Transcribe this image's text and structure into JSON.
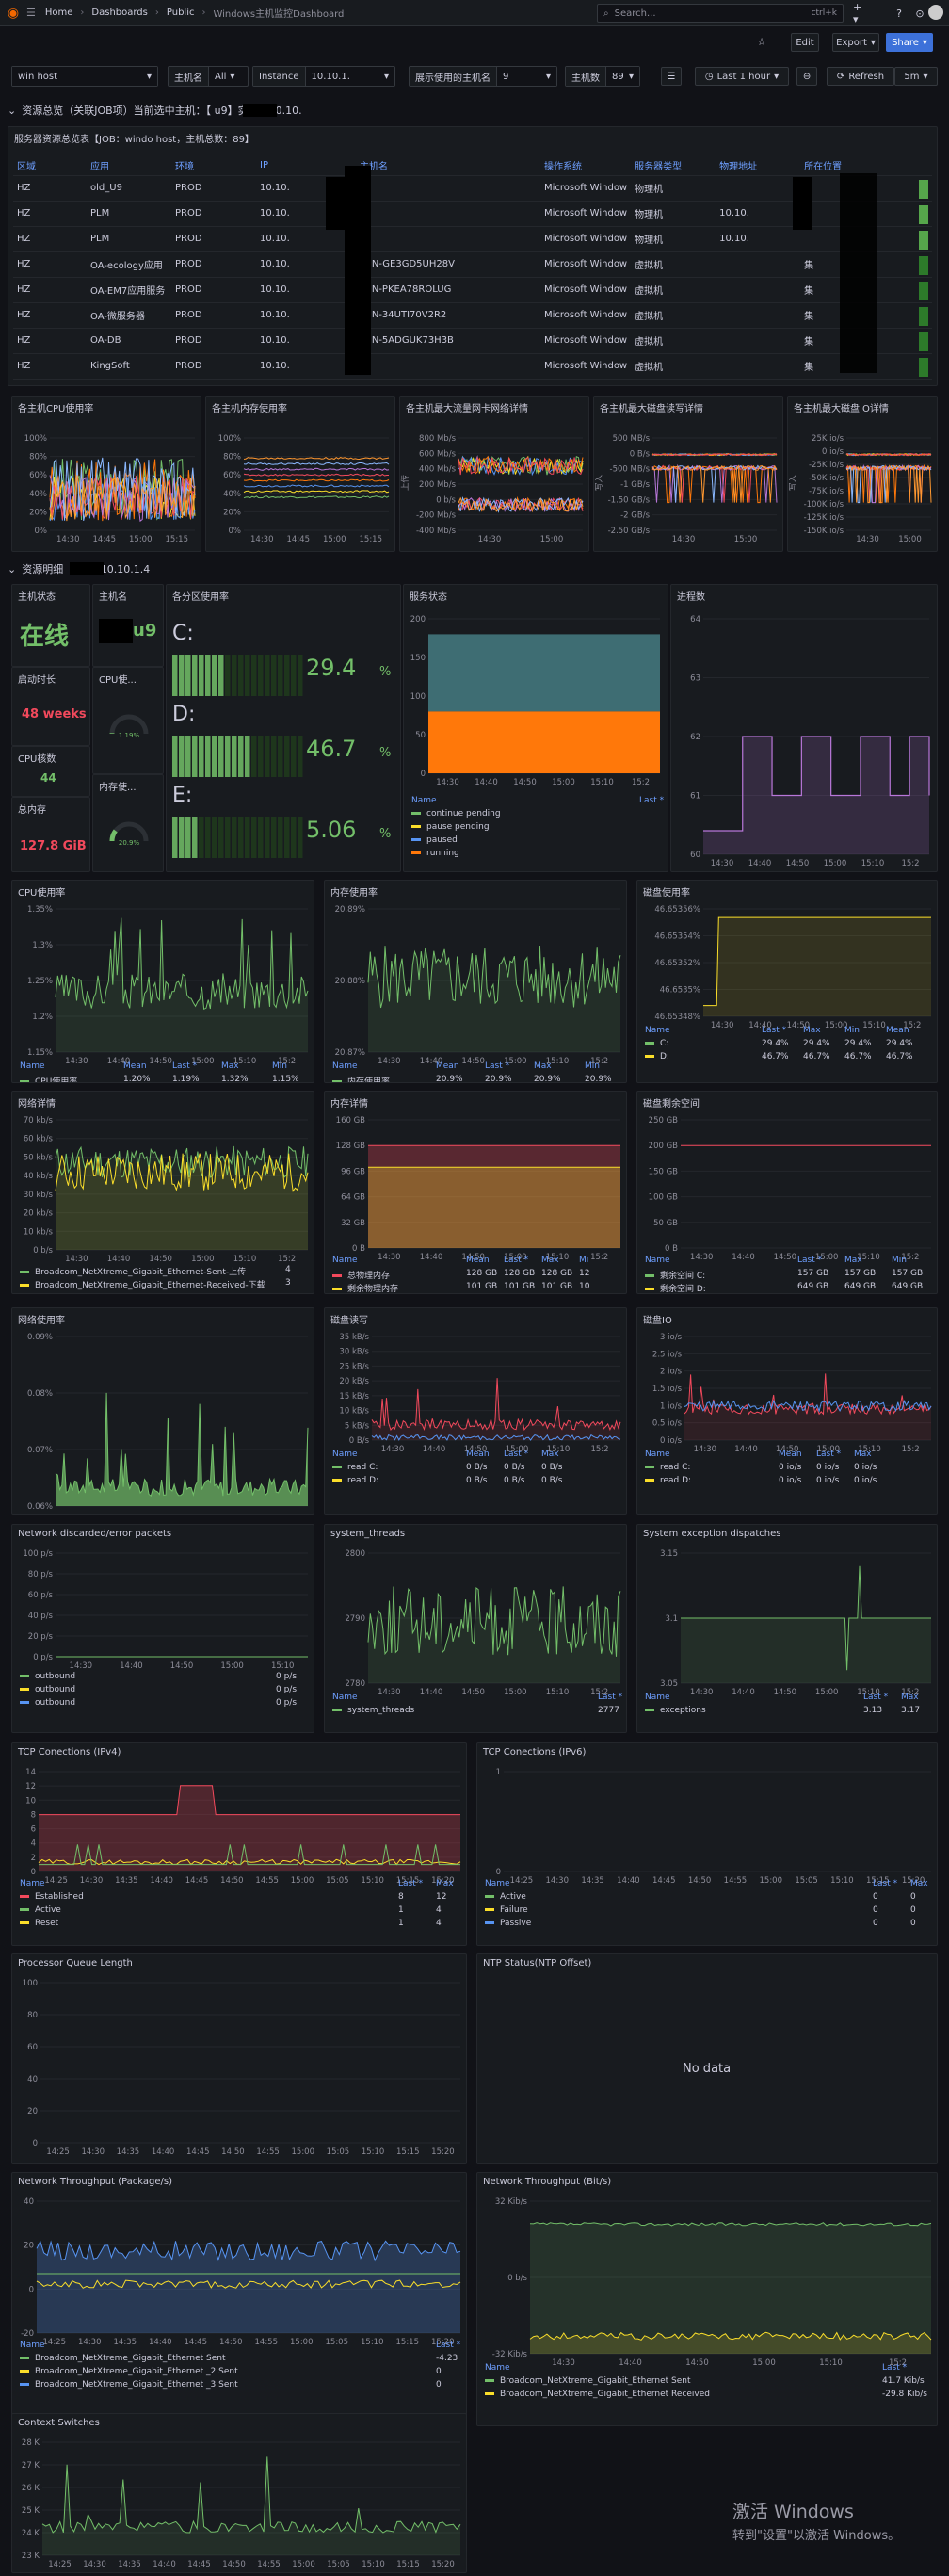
{
  "nav": {
    "home": "Home",
    "dashboards": "Dashboards",
    "public": "Public",
    "title": "Windows主机监控Dashboard",
    "search_placeholder": "Search...",
    "shortcut": "ctrl+k"
  },
  "toolbar": {
    "edit": "Edit",
    "export": "Export",
    "share": "Share",
    "time_range": "Last 1 hour",
    "refresh": "Refresh",
    "refresh_interval": "5m"
  },
  "vars": [
    {
      "label": "",
      "value": "win        host"
    },
    {
      "label": "主机名",
      "value": "All"
    },
    {
      "label": "Instance",
      "value": "10.10.1."
    },
    {
      "label": "展示使用的主机名",
      "value": "  9"
    },
    {
      "label": "主机数",
      "value": "89"
    }
  ],
  "row1": {
    "title": "资源总览（关联JOB项）当前选中主机：【      u9】实例：10.10."
  },
  "table": {
    "title": "服务器资源总览表【JOB：windo            host，主机总数：89】",
    "headers": [
      "区域",
      "应用",
      "环境",
      "IP",
      "主机名",
      "操作系统",
      "服务器类型",
      "物理地址",
      "所在位置"
    ],
    "rows": [
      [
        "HZ",
        "old_U9",
        "PROD",
        "10.10.",
        "",
        "Microsoft Window",
        "物理机",
        "",
        ""
      ],
      [
        "HZ",
        "PLM",
        "PROD",
        "10.10.",
        "",
        "Microsoft Window",
        "物理机",
        "10.10.",
        ""
      ],
      [
        "HZ",
        "PLM",
        "PROD",
        "10.10.",
        "Q",
        "Microsoft Window",
        "物理机",
        "10.10.",
        ""
      ],
      [
        "HZ",
        "OA-ecology应用",
        "PROD",
        "10.10.",
        "WIN-GE3GD5UH28V",
        "Microsoft Window",
        "虚拟机",
        "",
        "集"
      ],
      [
        "HZ",
        "OA-EM7应用服务",
        "PROD",
        "10.10.",
        "WIN-PKEA78ROLUG",
        "Microsoft Window",
        "虚拟机",
        "",
        "集"
      ],
      [
        "HZ",
        "OA-微服务器",
        "PROD",
        "10.10.",
        "WIN-34UTI70V2R2",
        "Microsoft Window",
        "虚拟机",
        "",
        "集"
      ],
      [
        "HZ",
        "OA-DB",
        "PROD",
        "10.10.",
        "WIN-5ADGUK73H3B",
        "Microsoft Window",
        "虚拟机",
        "",
        "集"
      ],
      [
        "HZ",
        "KingSoft",
        "PROD",
        "10.10.",
        "",
        "Microsoft Window",
        "虚拟机",
        "",
        "集"
      ]
    ]
  },
  "overview": [
    {
      "title": "各主机CPU使用率",
      "yticks": [
        "100%",
        "80%",
        "60%",
        "40%",
        "20%",
        "0%"
      ],
      "xticks": [
        "14:30",
        "14:45",
        "15:00",
        "15:15"
      ]
    },
    {
      "title": "各主机内存使用率",
      "yticks": [
        "100%",
        "80%",
        "60%",
        "40%",
        "20%",
        "0%"
      ],
      "xticks": [
        "14:30",
        "14:45",
        "15:00",
        "15:15"
      ]
    },
    {
      "title": "各主机最大流量网卡网络详情",
      "ylabel": "上传",
      "yticks": [
        "800 Mb/s",
        "600 Mb/s",
        "400 Mb/s",
        "200 Mb/s",
        "0 b/s",
        "-200 Mb/s",
        "-400 Mb/s"
      ],
      "xticks": [
        "14:30",
        "15:00"
      ]
    },
    {
      "title": "各主机最大磁盘读写详情",
      "ylabel": "写入",
      "yticks": [
        "500 MB/s",
        "0 B/s",
        "-500 MB/s",
        "-1 GB/s",
        "-1.50 GB/s",
        "-2 GB/s",
        "-2.50 GB/s"
      ],
      "xticks": [
        "14:30",
        "15:00"
      ]
    },
    {
      "title": "各主机最大磁盘IO详情",
      "ylabel": "写入",
      "yticks": [
        "25K io/s",
        "0 io/s",
        "-25K io/s",
        "-50K io/s",
        "-75K io/s",
        "-100K io/s",
        "-125K io/s",
        "-150K io/s"
      ],
      "xticks": [
        "14:30",
        "15:00"
      ]
    }
  ],
  "row2": {
    "title": "资源明细【      39：10.10.1.4"
  },
  "stats": {
    "host_status_title": "主机状态",
    "host_status": "在线",
    "hostname_title": "主机名",
    "hostname": "u9",
    "uptime_title": "启动时长",
    "uptime": "48 weeks",
    "cpu_title": "CPU使...",
    "cpu_gauge": "1.19%",
    "cpu_pct": 1.19,
    "cpus_title": "CPU核数",
    "cpus": "44",
    "mem_title": "内存使...",
    "mem_gauge": "20.9%",
    "mem_pct": 20.9,
    "total_mem_title": "总内存",
    "total_mem": "127.8 GiB"
  },
  "disks": {
    "title": "各分区使用率",
    "items": [
      {
        "label": "C:",
        "value": "29.4",
        "pct": 29.4,
        "unit": "%"
      },
      {
        "label": "D:",
        "value": "46.7",
        "pct": 46.7,
        "unit": "%"
      },
      {
        "label": "E:",
        "value": "5.06",
        "pct": 5.06,
        "unit": "%"
      }
    ]
  },
  "services": {
    "title": "服务状态",
    "yticks": [
      "200",
      "150",
      "100",
      "50",
      "0"
    ],
    "xticks": [
      "14:30",
      "14:40",
      "14:50",
      "15:00",
      "15:10",
      "15:2"
    ],
    "legend_head": [
      "Name",
      "Last *"
    ],
    "legend": [
      {
        "name": "continue pending",
        "last": "0",
        "color": "#73bf69"
      },
      {
        "name": "pause pending",
        "last": "0",
        "color": "#fade2a"
      },
      {
        "name": "paused",
        "last": "0",
        "color": "#5794f2"
      },
      {
        "name": "running",
        "last": "80",
        "color": "#ff780a"
      }
    ]
  },
  "procs": {
    "title": "进程数",
    "yticks": [
      "64",
      "63",
      "62",
      "61",
      "60"
    ],
    "xticks": [
      "14:30",
      "14:40",
      "14:50",
      "15:00",
      "15:10",
      "15:2"
    ]
  },
  "cpu_usage": {
    "title": "CPU使用率",
    "yticks": [
      "1.35%",
      "1.3%",
      "1.25%",
      "1.2%",
      "1.15%"
    ],
    "xticks": [
      "14:30",
      "14:40",
      "14:50",
      "15:00",
      "15:10",
      "15:2"
    ],
    "legend_head": [
      "Name",
      "Mean",
      "Last *",
      "Max",
      "Min"
    ],
    "legend": [
      {
        "name": "CPU使用率",
        "vals": [
          "1.20%",
          "1.19%",
          "1.32%",
          "1.15%"
        ],
        "color": "#73bf69"
      }
    ]
  },
  "mem_usage": {
    "title": "内存使用率",
    "yticks": [
      "20.89%",
      "20.88%",
      "20.87%"
    ],
    "xticks": [
      "14:30",
      "14:40",
      "14:50",
      "15:00",
      "15:10",
      "15:2"
    ],
    "legend_head": [
      "Name",
      "Mean",
      "Last *",
      "Max",
      "Min"
    ],
    "legend": [
      {
        "name": "内存使用率",
        "vals": [
          "20.9%",
          "20.9%",
          "20.9%",
          "20.9%"
        ],
        "color": "#73bf69"
      }
    ]
  },
  "disk_usage": {
    "title": "磁盘使用率",
    "yticks": [
      "46.65356%",
      "46.65354%",
      "46.65352%",
      "46.6535%",
      "46.65348%"
    ],
    "xticks": [
      "14:30",
      "14:40",
      "14:50",
      "15:00",
      "15:10",
      "15:2"
    ],
    "legend_head": [
      "Name",
      "Last *",
      "Max",
      "Min",
      "Mean"
    ],
    "legend": [
      {
        "name": "C:",
        "vals": [
          "29.4%",
          "29.4%",
          "29.4%",
          "29.4%"
        ],
        "color": "#73bf69"
      },
      {
        "name": "D:",
        "vals": [
          "46.7%",
          "46.7%",
          "46.7%",
          "46.7%"
        ],
        "color": "#fade2a"
      }
    ]
  },
  "net_detail": {
    "title": "网络详情",
    "yticks": [
      "70 kb/s",
      "60 kb/s",
      "50 kb/s",
      "40 kb/s",
      "30 kb/s",
      "20 kb/s",
      "10 kb/s",
      "0 b/s"
    ],
    "xticks": [
      "14:30",
      "14:40",
      "14:50",
      "15:00",
      "15:10",
      "15:2"
    ],
    "legend": [
      {
        "name": "Broadcom_NetXtreme_Gigabit_Ethernet-Sent-上传",
        "val": "4",
        "color": "#73bf69"
      },
      {
        "name": "Broadcom_NetXtreme_Gigabit_Ethernet-Received-下载",
        "val": "3",
        "color": "#fade2a"
      }
    ]
  },
  "mem_detail": {
    "title": "内存详情",
    "yticks": [
      "160 GB",
      "128 GB",
      "96 GB",
      "64 GB",
      "32 GB",
      "0 B"
    ],
    "xticks": [
      "14:30",
      "14:40",
      "14:50",
      "15:00",
      "15:10",
      "15:2"
    ],
    "legend_head": [
      "Name",
      "Mean",
      "Last *",
      "Max",
      "Mi"
    ],
    "legend": [
      {
        "name": "总物理内存",
        "vals": [
          "128 GB",
          "128 GB",
          "128 GB",
          "12"
        ],
        "color": "#f2495c"
      },
      {
        "name": "剩余物理内存",
        "vals": [
          "101 GB",
          "101 GB",
          "101 GB",
          "10"
        ],
        "color": "#fade2a"
      }
    ]
  },
  "disk_free": {
    "title": "磁盘剩余空间",
    "yticks": [
      "250 GB",
      "200 GB",
      "150 GB",
      "100 GB",
      "50 GB",
      "0 B"
    ],
    "xticks": [
      "14:30",
      "14:40",
      "14:50",
      "15:00",
      "15:10",
      "15:2"
    ],
    "legend_head": [
      "Name",
      "Last *",
      "Max",
      "Min"
    ],
    "legend": [
      {
        "name": "剩余空间 C:",
        "vals": [
          "157 GB",
          "157 GB",
          "157 GB"
        ],
        "color": "#73bf69"
      },
      {
        "name": "剩余空间 D:",
        "vals": [
          "649 GB",
          "649 GB",
          "649 GB"
        ],
        "color": "#fade2a"
      }
    ]
  },
  "net_usage": {
    "title": "网络使用率",
    "yticks": [
      "0.09%",
      "0.08%",
      "0.07%",
      "0.06%"
    ]
  },
  "disk_rw": {
    "title": "磁盘读写",
    "yticks": [
      "35 kB/s",
      "30 kB/s",
      "25 kB/s",
      "20 kB/s",
      "15 kB/s",
      "10 kB/s",
      "5 kB/s",
      "0 B/s"
    ],
    "xticks": [
      "14:30",
      "14:40",
      "14:50",
      "15:00",
      "15:10",
      "15:2"
    ],
    "legend_head": [
      "Name",
      "Mean",
      "Last *",
      "Max"
    ],
    "legend": [
      {
        "name": "read C:",
        "vals": [
          "0 B/s",
          "0 B/s",
          "0 B/s"
        ],
        "color": "#73bf69"
      },
      {
        "name": "read D:",
        "vals": [
          "0 B/s",
          "0 B/s",
          "0 B/s"
        ],
        "color": "#fade2a"
      }
    ]
  },
  "disk_io": {
    "title": "磁盘IO",
    "yticks": [
      "3 io/s",
      "2.5 io/s",
      "2 io/s",
      "1.5 io/s",
      "1 io/s",
      "0.5 io/s",
      "0 io/s"
    ],
    "xticks": [
      "14:30",
      "14:40",
      "14:50",
      "15:00",
      "15:10",
      "15:2"
    ],
    "legend_head": [
      "Name",
      "Mean",
      "Last *",
      "Max"
    ],
    "legend": [
      {
        "name": "read C:",
        "vals": [
          "0 io/s",
          "0 io/s",
          "0 io/s"
        ],
        "color": "#73bf69"
      },
      {
        "name": "read D:",
        "vals": [
          "0 io/s",
          "0 io/s",
          "0 io/s"
        ],
        "color": "#fade2a"
      }
    ]
  },
  "net_err": {
    "title": "Network discarded/error packets",
    "yticks": [
      "100 p/s",
      "80 p/s",
      "60 p/s",
      "40 p/s",
      "20 p/s",
      "0 p/s"
    ],
    "xticks": [
      "14:30",
      "14:40",
      "14:50",
      "15:00",
      "15:10"
    ],
    "legend": [
      {
        "name": "outbound",
        "val": "0 p/s",
        "color": "#73bf69"
      },
      {
        "name": "outbound",
        "val": "0 p/s",
        "color": "#fade2a"
      },
      {
        "name": "outbound",
        "val": "0 p/s",
        "color": "#5794f2"
      }
    ]
  },
  "threads": {
    "title": "system_threads",
    "yticks": [
      "2800",
      "2790",
      "2780"
    ],
    "xticks": [
      "14:30",
      "14:40",
      "14:50",
      "15:00",
      "15:10",
      "15:2"
    ],
    "legend_head": [
      "Name",
      "Last *"
    ],
    "legend": [
      {
        "name": "system_threads",
        "vals": [
          "2777"
        ],
        "color": "#73bf69"
      }
    ]
  },
  "exc": {
    "title": "System exception dispatches",
    "yticks": [
      "3.15",
      "3.1",
      "3.05"
    ],
    "xticks": [
      "14:30",
      "14:40",
      "14:50",
      "15:00",
      "15:10",
      "15:2"
    ],
    "legend_head": [
      "Name",
      "Last *",
      "Max"
    ],
    "legend": [
      {
        "name": "exceptions",
        "vals": [
          "3.13",
          "3.17"
        ],
        "color": "#73bf69"
      }
    ]
  },
  "tcp4": {
    "title": "TCP Conections (IPv4)",
    "yticks": [
      "14",
      "12",
      "10",
      "8",
      "6",
      "4",
      "2",
      "0"
    ],
    "xticks": [
      "14:25",
      "14:30",
      "14:35",
      "14:40",
      "14:45",
      "14:50",
      "14:55",
      "15:00",
      "15:05",
      "15:10",
      "15:15",
      "15:20"
    ],
    "legend_head": [
      "Name",
      "Last *",
      "Max"
    ],
    "legend": [
      {
        "name": "Established",
        "vals": [
          "8",
          "12"
        ],
        "color": "#f2495c"
      },
      {
        "name": "Active",
        "vals": [
          "1",
          "4"
        ],
        "color": "#73bf69"
      },
      {
        "name": "Reset",
        "vals": [
          "1",
          "4"
        ],
        "color": "#fade2a"
      }
    ]
  },
  "tcp6": {
    "title": "TCP Conections (IPv6)",
    "yticks": [
      "1",
      "0"
    ],
    "xticks": [
      "14:25",
      "14:30",
      "14:35",
      "14:40",
      "14:45",
      "14:50",
      "14:55",
      "15:00",
      "15:05",
      "15:10",
      "15:15",
      "15:20"
    ],
    "legend_head": [
      "Name",
      "Last *",
      "Max"
    ],
    "legend": [
      {
        "name": "Active",
        "vals": [
          "0",
          "0"
        ],
        "color": "#73bf69"
      },
      {
        "name": "Failure",
        "vals": [
          "0",
          "0"
        ],
        "color": "#fade2a"
      },
      {
        "name": "Passive",
        "vals": [
          "0",
          "0"
        ],
        "color": "#5794f2"
      }
    ]
  },
  "pql": {
    "title": "Processor Queue Length",
    "yticks": [
      "100",
      "80",
      "60",
      "40",
      "20",
      "0"
    ],
    "xticks": [
      "14:25",
      "14:30",
      "14:35",
      "14:40",
      "14:45",
      "14:50",
      "14:55",
      "15:00",
      "15:05",
      "15:10",
      "15:15",
      "15:20"
    ]
  },
  "ntp": {
    "title": "NTP Status(NTP Offset)",
    "nodata": "No data"
  },
  "ntpkg": {
    "title": "Network Throughput (Package/s)",
    "yticks": [
      "40",
      "20",
      "0",
      "-20"
    ],
    "xticks": [
      "14:25",
      "14:30",
      "14:35",
      "14:40",
      "14:45",
      "14:50",
      "14:55",
      "15:00",
      "15:05",
      "15:10",
      "15:15",
      "15:20"
    ],
    "legend_head": [
      "Name",
      "Last *"
    ],
    "legend": [
      {
        "name": "Broadcom_NetXtreme_Gigabit_Ethernet Sent",
        "vals": [
          "-4.23"
        ],
        "color": "#73bf69"
      },
      {
        "name": "Broadcom_NetXtreme_Gigabit_Ethernet _2 Sent",
        "vals": [
          "0"
        ],
        "color": "#fade2a"
      },
      {
        "name": "Broadcom_NetXtreme_Gigabit_Ethernet _3 Sent",
        "vals": [
          "0"
        ],
        "color": "#5794f2"
      }
    ]
  },
  "ntbit": {
    "title": "Network Throughput (Bit/s)",
    "yticks": [
      "32 Kib/s",
      "0 b/s",
      "-32 Kib/s"
    ],
    "xticks": [
      "14:30",
      "14:40",
      "14:50",
      "15:00",
      "15:10",
      "15:2"
    ],
    "legend_head": [
      "Name",
      "Last *"
    ],
    "legend": [
      {
        "name": "Broadcom_NetXtreme_Gigabit_Ethernet Sent",
        "vals": [
          "41.7 Kib/s"
        ],
        "color": "#73bf69"
      },
      {
        "name": "Broadcom_NetXtreme_Gigabit_Ethernet Received",
        "vals": [
          "-29.8 Kib/s"
        ],
        "color": "#fade2a"
      }
    ]
  },
  "ctx": {
    "title": "Context Switches",
    "yticks": [
      "28 K",
      "27 K",
      "26 K",
      "25 K",
      "24 K",
      "23 K"
    ],
    "xticks": [
      "14:25",
      "14:30",
      "14:35",
      "14:40",
      "14:45",
      "14:50",
      "14:55",
      "15:00",
      "15:05",
      "15:10",
      "15:15",
      "15:20"
    ]
  },
  "watermark": {
    "line1": "激活 Windows",
    "line2": "转到\"设置\"以激活 Windows。"
  },
  "colors": {
    "green": "#73bf69",
    "yellow": "#fade2a",
    "red": "#f2495c",
    "blue": "#5794f2",
    "orange": "#ff780a",
    "purple": "#b877d9",
    "teal": "#3e6d73"
  }
}
